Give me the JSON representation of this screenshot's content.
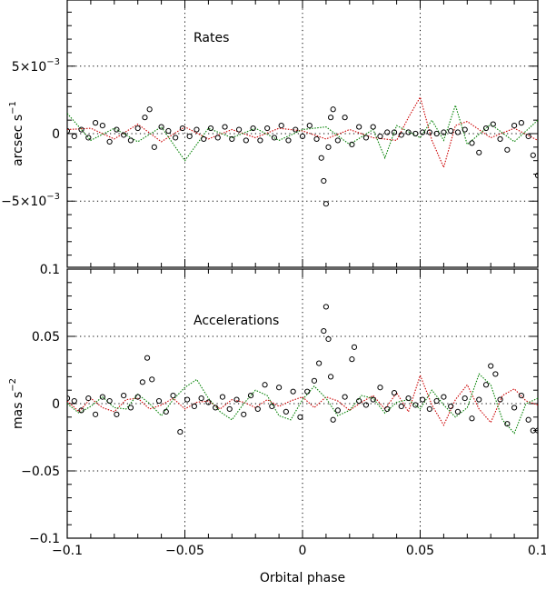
{
  "chart_data": [
    {
      "type": "scatter",
      "panel": "upper",
      "annotation": "Rates",
      "ylabel": "arcsec s",
      "ylabel_exponent": "−1",
      "xlim": [
        -0.1,
        0.1
      ],
      "ylim": [
        -0.0099,
        0.0099
      ],
      "yticks": [
        {
          "value": 0.005,
          "mantissa": "5×10",
          "exponent": "−3"
        },
        {
          "value": 0,
          "mantissa": "0",
          "exponent": ""
        },
        {
          "value": -0.005,
          "mantissa": "−5×10",
          "exponent": "−3"
        }
      ],
      "x_gridlines": [
        -0.05,
        0,
        0.05
      ],
      "y_gridlines": [
        -0.005,
        0,
        0.005
      ],
      "series": [
        {
          "color": "#000000",
          "marker": "open-circle",
          "x": [
            -0.1,
            -0.097,
            -0.094,
            -0.091,
            -0.088,
            -0.085,
            -0.082,
            -0.079,
            -0.076,
            -0.073,
            -0.07,
            -0.067,
            -0.065,
            -0.063,
            -0.06,
            -0.057,
            -0.054,
            -0.051,
            -0.048,
            -0.045,
            -0.042,
            -0.039,
            -0.036,
            -0.033,
            -0.03,
            -0.027,
            -0.024,
            -0.021,
            -0.018,
            -0.015,
            -0.012,
            -0.009,
            -0.006,
            -0.003,
            0,
            0.003,
            0.006,
            0.008,
            0.009,
            0.01,
            0.011,
            0.012,
            0.013,
            0.015,
            0.018,
            0.021,
            0.024,
            0.027,
            0.03,
            0.033,
            0.036,
            0.039,
            0.042,
            0.045,
            0.048,
            0.051,
            0.054,
            0.057,
            0.06,
            0.063,
            0.066,
            0.069,
            0.072,
            0.075,
            0.078,
            0.081,
            0.084,
            0.087,
            0.09,
            0.093,
            0.096,
            0.098,
            0.1
          ],
          "y": [
            0.0002,
            -0.0002,
            0.0003,
            -0.0003,
            0.0008,
            0.0006,
            -0.0006,
            0.0003,
            -0.0001,
            -0.0005,
            0.0004,
            0.0012,
            0.0018,
            -0.001,
            0.0005,
            0.0002,
            -0.0003,
            0.0004,
            -0.0002,
            0.0003,
            -0.0004,
            0.0004,
            -0.0003,
            0.0005,
            -0.0004,
            0.0003,
            -0.0005,
            0.0004,
            -0.0005,
            0.0004,
            -0.0003,
            0.0006,
            -0.0005,
            0.0003,
            -0.0002,
            0.0006,
            -0.0004,
            -0.0018,
            -0.0035,
            -0.0052,
            -0.001,
            0.0012,
            0.0018,
            -0.0005,
            0.0012,
            -0.0008,
            0.0005,
            -0.0003,
            0.0005,
            -0.0002,
            0.0001,
            0.0001,
            -0.0001,
            0.0001,
            0.0,
            0.0001,
            0.0001,
            0.0,
            0.0001,
            0.0002,
            0.0001,
            0.0003,
            -0.0007,
            -0.0014,
            0.0004,
            0.0007,
            -0.0004,
            -0.0012,
            0.0006,
            0.0008,
            -0.0002,
            -0.0016,
            -0.0031
          ]
        },
        {
          "color": "#cc0000",
          "marker": "line",
          "x": [
            -0.1,
            -0.09,
            -0.08,
            -0.07,
            -0.06,
            -0.05,
            -0.04,
            -0.03,
            -0.02,
            -0.01,
            0,
            0.01,
            0.02,
            0.03,
            0.04,
            0.045,
            0.05,
            0.055,
            0.06,
            0.065,
            0.07,
            0.08,
            0.09,
            0.1
          ],
          "y": [
            0.0003,
            0.0004,
            -0.0004,
            0.0007,
            -0.0006,
            0.0005,
            -0.0004,
            0.0003,
            -0.0003,
            0.0004,
            0.0002,
            -0.0004,
            0.0003,
            -0.0003,
            -0.0005,
            0.0012,
            0.0027,
            -0.0005,
            -0.0025,
            0.0006,
            0.0009,
            -0.0003,
            0.0004,
            -0.0005
          ]
        },
        {
          "color": "#008000",
          "marker": "line",
          "x": [
            -0.1,
            -0.09,
            -0.08,
            -0.07,
            -0.06,
            -0.05,
            -0.04,
            -0.03,
            -0.02,
            -0.01,
            0,
            0.01,
            0.02,
            0.03,
            0.035,
            0.04,
            0.05,
            0.055,
            0.06,
            0.065,
            0.07,
            0.08,
            0.09,
            0.1
          ],
          "y": [
            0.0015,
            -0.0005,
            0.0004,
            -0.0006,
            0.0005,
            -0.002,
            0.0004,
            -0.0003,
            0.0004,
            -0.0005,
            0.0003,
            0.0005,
            -0.0008,
            0.0003,
            -0.0018,
            0.0006,
            -0.0003,
            0.001,
            -0.0005,
            0.0021,
            -0.0008,
            0.0007,
            -0.0006,
            0.001
          ]
        }
      ]
    },
    {
      "type": "scatter",
      "panel": "lower",
      "annotation": "Accelerations",
      "ylabel": "mas s",
      "ylabel_exponent": "−2",
      "xlabel": "Orbital phase",
      "xlim": [
        -0.1,
        0.1
      ],
      "ylim": [
        -0.1,
        0.1
      ],
      "yticks": [
        {
          "value": 0.1,
          "mantissa": "0.1",
          "exponent": ""
        },
        {
          "value": 0.05,
          "mantissa": "0.05",
          "exponent": ""
        },
        {
          "value": 0,
          "mantissa": "0",
          "exponent": ""
        },
        {
          "value": -0.05,
          "mantissa": "−0.05",
          "exponent": ""
        },
        {
          "value": -0.1,
          "mantissa": "−0.1",
          "exponent": ""
        }
      ],
      "xticks": [
        {
          "value": -0.1,
          "label": "−0.1"
        },
        {
          "value": -0.05,
          "label": "−0.05"
        },
        {
          "value": 0,
          "label": "0"
        },
        {
          "value": 0.05,
          "label": "0.05"
        },
        {
          "value": 0.1,
          "label": "0.1"
        }
      ],
      "x_gridlines": [
        -0.05,
        0,
        0.05
      ],
      "y_gridlines": [
        -0.05,
        0,
        0.05
      ],
      "series": [
        {
          "color": "#000000",
          "marker": "open-circle",
          "x": [
            -0.1,
            -0.097,
            -0.094,
            -0.091,
            -0.088,
            -0.085,
            -0.082,
            -0.079,
            -0.076,
            -0.073,
            -0.07,
            -0.068,
            -0.066,
            -0.064,
            -0.061,
            -0.058,
            -0.055,
            -0.052,
            -0.049,
            -0.046,
            -0.043,
            -0.04,
            -0.037,
            -0.034,
            -0.031,
            -0.028,
            -0.025,
            -0.022,
            -0.019,
            -0.016,
            -0.013,
            -0.01,
            -0.007,
            -0.004,
            -0.001,
            0.002,
            0.005,
            0.007,
            0.009,
            0.01,
            0.011,
            0.012,
            0.013,
            0.015,
            0.018,
            0.021,
            0.022,
            0.024,
            0.027,
            0.03,
            0.033,
            0.036,
            0.039,
            0.042,
            0.045,
            0.048,
            0.051,
            0.054,
            0.057,
            0.06,
            0.063,
            0.066,
            0.069,
            0.072,
            0.075,
            0.078,
            0.08,
            0.082,
            0.084,
            0.087,
            0.09,
            0.093,
            0.096,
            0.098,
            0.1
          ],
          "y": [
            0.004,
            0.002,
            -0.005,
            0.004,
            -0.008,
            0.005,
            0.002,
            -0.008,
            0.006,
            -0.003,
            0.005,
            0.016,
            0.034,
            0.018,
            0.002,
            -0.006,
            0.006,
            -0.021,
            0.003,
            -0.002,
            0.004,
            0.001,
            -0.003,
            0.005,
            -0.004,
            0.003,
            -0.008,
            0.006,
            -0.004,
            0.014,
            -0.002,
            0.012,
            -0.006,
            0.009,
            -0.01,
            0.009,
            0.017,
            0.03,
            0.054,
            0.072,
            0.048,
            0.02,
            -0.012,
            -0.005,
            0.005,
            0.033,
            0.042,
            0.002,
            -0.001,
            0.003,
            0.012,
            -0.004,
            0.008,
            -0.002,
            0.004,
            -0.001,
            0.003,
            -0.004,
            0.002,
            0.005,
            -0.002,
            -0.006,
            0.004,
            -0.011,
            0.003,
            0.014,
            0.028,
            0.022,
            0.003,
            -0.015,
            -0.003,
            0.006,
            -0.012,
            -0.02,
            -0.02
          ]
        },
        {
          "color": "#cc0000",
          "marker": "line",
          "x": [
            -0.1,
            -0.095,
            -0.09,
            -0.085,
            -0.08,
            -0.075,
            -0.07,
            -0.065,
            -0.06,
            -0.055,
            -0.05,
            -0.045,
            -0.04,
            -0.035,
            -0.03,
            -0.025,
            -0.02,
            -0.015,
            -0.01,
            -0.005,
            0,
            0.005,
            0.01,
            0.015,
            0.02,
            0.025,
            0.03,
            0.035,
            0.04,
            0.045,
            0.05,
            0.055,
            0.06,
            0.065,
            0.07,
            0.075,
            0.08,
            0.085,
            0.09,
            0.095,
            0.1
          ],
          "y": [
            0.002,
            -0.006,
            0.004,
            -0.003,
            -0.006,
            0.003,
            0.004,
            -0.004,
            -0.001,
            0.004,
            -0.004,
            0.001,
            0.002,
            -0.004,
            0.003,
            0.001,
            -0.003,
            0.003,
            -0.002,
            0.002,
            0.005,
            -0.003,
            0.005,
            0.002,
            -0.005,
            0.001,
            0.006,
            -0.004,
            0.008,
            -0.006,
            0.021,
            -0.001,
            -0.016,
            0.003,
            0.014,
            -0.004,
            -0.014,
            0.006,
            0.011,
            0.002,
            -0.001
          ]
        },
        {
          "color": "#008000",
          "marker": "line",
          "x": [
            -0.1,
            -0.095,
            -0.09,
            -0.085,
            -0.08,
            -0.075,
            -0.07,
            -0.065,
            -0.06,
            -0.055,
            -0.05,
            -0.045,
            -0.04,
            -0.035,
            -0.03,
            -0.025,
            -0.02,
            -0.015,
            -0.01,
            -0.005,
            0,
            0.005,
            0.01,
            0.015,
            0.02,
            0.025,
            0.03,
            0.035,
            0.04,
            0.045,
            0.05,
            0.055,
            0.06,
            0.065,
            0.07,
            0.075,
            0.08,
            0.085,
            0.09,
            0.095,
            0.1
          ],
          "y": [
            0.0,
            -0.007,
            -0.002,
            0.005,
            -0.003,
            -0.004,
            0.007,
            0.0,
            -0.009,
            0.003,
            0.012,
            0.018,
            0.004,
            -0.006,
            -0.012,
            0.0,
            0.01,
            0.006,
            -0.009,
            -0.012,
            0.003,
            0.013,
            0.004,
            -0.009,
            -0.005,
            0.006,
            0.004,
            -0.007,
            0.001,
            0.003,
            -0.004,
            0.01,
            -0.001,
            -0.01,
            -0.003,
            0.022,
            0.014,
            -0.012,
            -0.022,
            0.0,
            0.004
          ]
        }
      ]
    }
  ]
}
